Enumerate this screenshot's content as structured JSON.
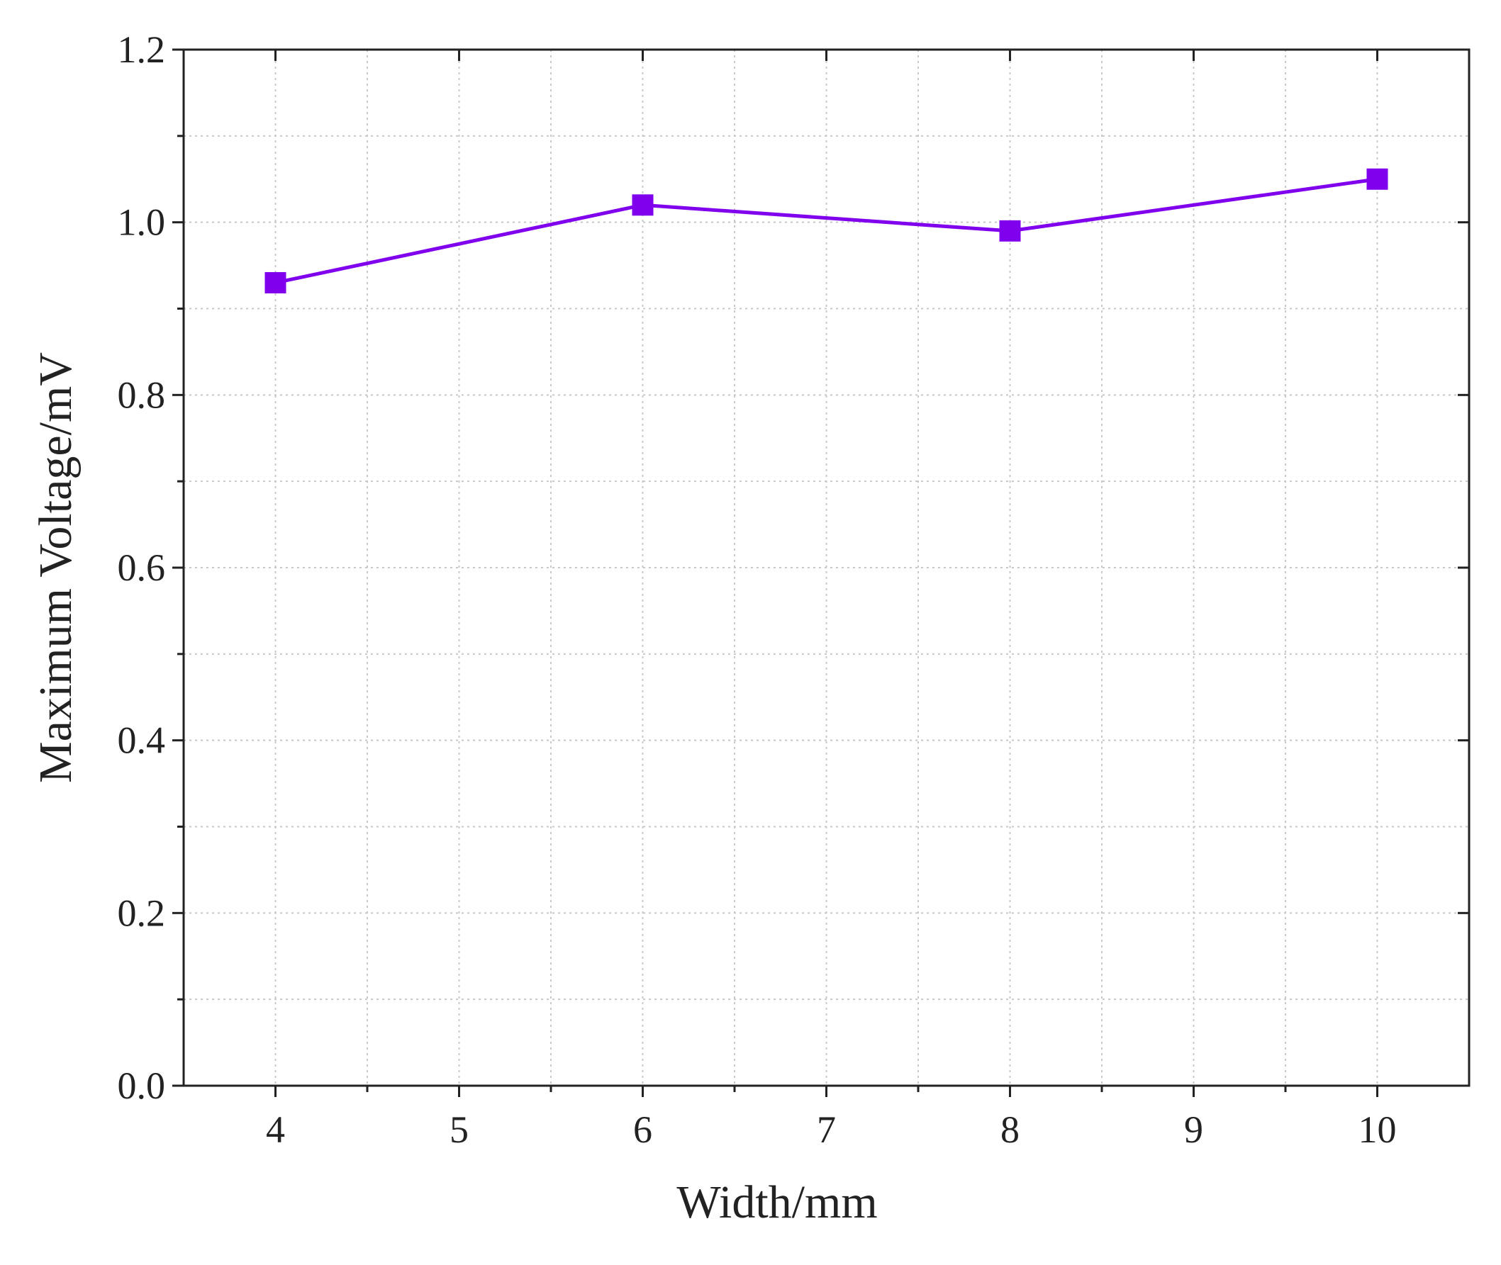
{
  "chart_data": {
    "type": "line",
    "x_label": "Width/mm",
    "y_label": "Maximum Voltage/mV",
    "x": [
      4,
      6,
      8,
      10
    ],
    "series": [
      {
        "color": "#8000ee",
        "values": [
          0.93,
          1.02,
          0.99,
          1.05
        ]
      }
    ],
    "xlim": [
      3.5,
      10.5
    ],
    "xticks": [
      4,
      5,
      6,
      7,
      8,
      9,
      10
    ],
    "xminorticks": [
      4.5,
      5.5,
      6.5,
      7.5,
      8.5,
      9.5
    ],
    "ylim": [
      0,
      1.2
    ],
    "yticks": [
      {
        "value": 0,
        "label": "0.0"
      },
      0.2,
      0.4,
      0.6,
      0.8,
      {
        "value": 1,
        "label": "1.0"
      },
      1.2
    ],
    "yminorticks": [
      0.1,
      0.3,
      0.5,
      0.7,
      0.9,
      1.1
    ],
    "grid": true,
    "marker": "square"
  }
}
